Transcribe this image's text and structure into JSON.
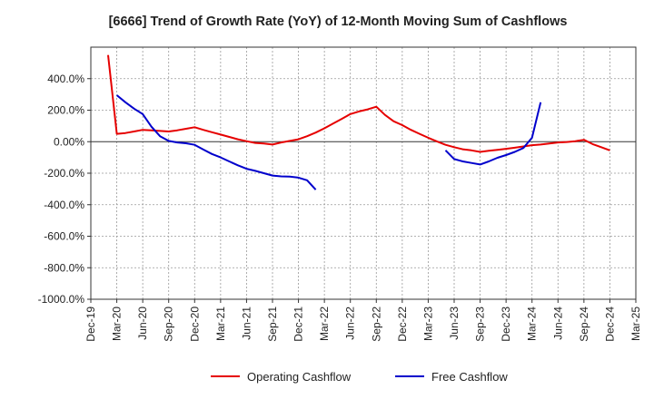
{
  "chart_data": {
    "type": "line",
    "title": "[6666]  Trend of Growth Rate (YoY) of 12-Month Moving Sum of Cashflows",
    "xlabel": "",
    "ylabel": "",
    "x_ticks": [
      "Dec-19",
      "Mar-20",
      "Jun-20",
      "Sep-20",
      "Dec-20",
      "Mar-21",
      "Jun-21",
      "Sep-21",
      "Dec-21",
      "Mar-22",
      "Jun-22",
      "Sep-22",
      "Dec-22",
      "Mar-23",
      "Jun-23",
      "Sep-23",
      "Dec-23",
      "Mar-24",
      "Jun-24",
      "Sep-24",
      "Dec-24",
      "Mar-25"
    ],
    "y_ticks": [
      "400.0%",
      "200.0%",
      "0.00%",
      "-200.0%",
      "-400.0%",
      "-600.0%",
      "-800.0%",
      "-1000.0%"
    ],
    "y_tick_values": [
      400,
      200,
      0,
      -200,
      -400,
      -600,
      -800,
      -1000
    ],
    "ylim": [
      -1000,
      600
    ],
    "x_range": [
      "Dec-19",
      "Mar-25"
    ],
    "grid": true,
    "legend_position": "bottom-center",
    "series": [
      {
        "name": "Operating Cashflow",
        "color": "#e60000",
        "points": [
          [
            "Feb-20",
            550
          ],
          [
            "Mar-20",
            50
          ],
          [
            "Apr-20",
            55
          ],
          [
            "May-20",
            65
          ],
          [
            "Jun-20",
            75
          ],
          [
            "Jul-20",
            72
          ],
          [
            "Aug-20",
            68
          ],
          [
            "Sep-20",
            65
          ],
          [
            "Oct-20",
            72
          ],
          [
            "Nov-20",
            82
          ],
          [
            "Dec-20",
            92
          ],
          [
            "Jan-21",
            75
          ],
          [
            "Feb-21",
            60
          ],
          [
            "Mar-21",
            45
          ],
          [
            "Apr-21",
            30
          ],
          [
            "May-21",
            15
          ],
          [
            "Jun-21",
            3
          ],
          [
            "Jul-21",
            -8
          ],
          [
            "Aug-21",
            -12
          ],
          [
            "Sep-21",
            -18
          ],
          [
            "Oct-21",
            -5
          ],
          [
            "Nov-21",
            5
          ],
          [
            "Dec-21",
            15
          ],
          [
            "Jan-22",
            35
          ],
          [
            "Feb-22",
            58
          ],
          [
            "Mar-22",
            85
          ],
          [
            "Apr-22",
            115
          ],
          [
            "May-22",
            145
          ],
          [
            "Jun-22",
            175
          ],
          [
            "Jul-22",
            192
          ],
          [
            "Aug-22",
            205
          ],
          [
            "Sep-22",
            222
          ],
          [
            "Oct-22",
            170
          ],
          [
            "Nov-22",
            130
          ],
          [
            "Dec-22",
            105
          ],
          [
            "Jan-23",
            75
          ],
          [
            "Feb-23",
            50
          ],
          [
            "Mar-23",
            25
          ],
          [
            "Apr-23",
            2
          ],
          [
            "May-23",
            -20
          ],
          [
            "Jun-23",
            -35
          ],
          [
            "Jul-23",
            -48
          ],
          [
            "Aug-23",
            -55
          ],
          [
            "Sep-23",
            -65
          ],
          [
            "Oct-23",
            -58
          ],
          [
            "Nov-23",
            -52
          ],
          [
            "Dec-23",
            -45
          ],
          [
            "Jan-24",
            -38
          ],
          [
            "Feb-24",
            -30
          ],
          [
            "Mar-24",
            -22
          ],
          [
            "Apr-24",
            -18
          ],
          [
            "May-24",
            -12
          ],
          [
            "Jun-24",
            -5
          ],
          [
            "Jul-24",
            -2
          ],
          [
            "Aug-24",
            3
          ],
          [
            "Sep-24",
            12
          ],
          [
            "Oct-24",
            -15
          ],
          [
            "Nov-24",
            -35
          ],
          [
            "Dec-24",
            -55
          ]
        ]
      },
      {
        "name": "Free Cashflow",
        "color": "#0000cc",
        "segments": [
          [
            [
              "Mar-20",
              295
            ],
            [
              "Apr-20",
              250
            ],
            [
              "May-20",
              210
            ],
            [
              "Jun-20",
              175
            ],
            [
              "Jul-20",
              95
            ],
            [
              "Aug-20",
              35
            ],
            [
              "Sep-20",
              5
            ],
            [
              "Oct-20",
              -5
            ],
            [
              "Nov-20",
              -10
            ],
            [
              "Dec-20",
              -20
            ],
            [
              "Jan-21",
              -50
            ],
            [
              "Feb-21",
              -78
            ],
            [
              "Mar-21",
              -100
            ],
            [
              "Apr-21",
              -125
            ],
            [
              "May-21",
              -150
            ],
            [
              "Jun-21",
              -172
            ],
            [
              "Jul-21",
              -185
            ],
            [
              "Aug-21",
              -200
            ],
            [
              "Sep-21",
              -215
            ],
            [
              "Oct-21",
              -220
            ],
            [
              "Nov-21",
              -222
            ],
            [
              "Dec-21",
              -228
            ],
            [
              "Jan-22",
              -245
            ],
            [
              "Feb-22",
              -305
            ]
          ],
          [
            [
              "May-23",
              -55
            ],
            [
              "Jun-23",
              -110
            ],
            [
              "Jul-23",
              -125
            ],
            [
              "Aug-23",
              -135
            ],
            [
              "Sep-23",
              -145
            ],
            [
              "Oct-23",
              -125
            ],
            [
              "Nov-23",
              -102
            ],
            [
              "Dec-23",
              -85
            ],
            [
              "Jan-24",
              -65
            ],
            [
              "Feb-24",
              -40
            ],
            [
              "Mar-24",
              25
            ],
            [
              "Apr-24",
              250
            ]
          ]
        ]
      }
    ]
  }
}
